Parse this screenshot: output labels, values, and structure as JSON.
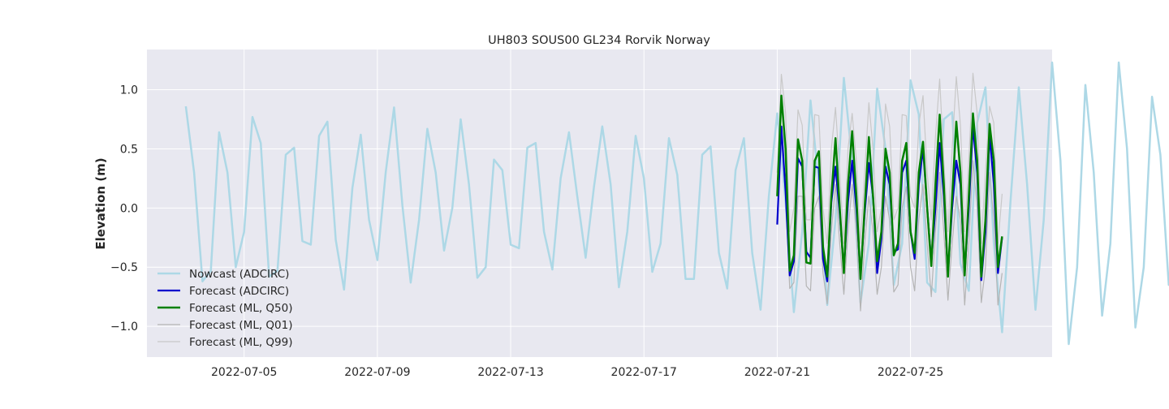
{
  "chart_data": {
    "type": "line",
    "title": "UH803 SOUS00 GL234 Rorvik Norway",
    "xlabel": "",
    "ylabel": "Elevation (m)",
    "x_unit": "date",
    "xlim": [
      "2022-07-02T02:00",
      "2022-07-29T06:00"
    ],
    "ylim": [
      -1.26,
      1.34
    ],
    "x_ticks": [
      "2022-07-05",
      "2022-07-09",
      "2022-07-13",
      "2022-07-17",
      "2022-07-21",
      "2022-07-25"
    ],
    "y_ticks": [
      -1.0,
      -0.5,
      0.0,
      0.5,
      1.0
    ],
    "y_tick_labels": [
      "−1.0",
      "−0.5",
      "0.0",
      "0.5",
      "1.0"
    ],
    "grid": true,
    "background": "#e8e8f0",
    "legend_position": "lower-left",
    "series": [
      {
        "name": "Nowcast (ADCIRC)",
        "color": "#add8e6",
        "x_start": "2022-07-03T06:00",
        "x_step_hours": 6,
        "values": [
          0.86,
          0.3,
          -0.62,
          -0.53,
          0.64,
          0.3,
          -0.5,
          -0.2,
          0.77,
          0.55,
          -0.58,
          -0.53,
          0.45,
          0.51,
          -0.28,
          -0.31,
          0.61,
          0.73,
          -0.27,
          -0.69,
          0.17,
          0.62,
          -0.1,
          -0.44,
          0.3,
          0.85,
          0.02,
          -0.63,
          -0.1,
          0.67,
          0.3,
          -0.36,
          0.0,
          0.75,
          0.2,
          -0.59,
          -0.5,
          0.41,
          0.32,
          -0.31,
          -0.34,
          0.51,
          0.55,
          -0.2,
          -0.52,
          0.25,
          0.64,
          0.1,
          -0.42,
          0.18,
          0.69,
          0.2,
          -0.67,
          -0.2,
          0.61,
          0.25,
          -0.54,
          -0.3,
          0.59,
          0.28,
          -0.6,
          -0.6,
          0.45,
          0.52,
          -0.38,
          -0.68,
          0.32,
          0.59,
          -0.38,
          -0.86,
          0.1,
          0.8,
          0.05,
          -0.88,
          -0.2,
          0.91,
          0.2,
          -0.82,
          -0.1,
          1.1,
          0.4,
          -0.8,
          -0.3,
          1.01,
          0.5,
          -0.65,
          -0.3,
          1.08,
          0.79,
          -0.63,
          -0.71,
          0.75,
          0.81,
          -0.47,
          -0.7,
          0.72,
          1.02,
          -0.3,
          -1.05,
          0.05,
          1.02,
          0.2,
          -0.86,
          -0.1,
          1.23,
          0.4,
          -1.15,
          -0.5,
          1.04,
          0.3,
          -0.91,
          -0.3,
          1.23,
          0.5,
          -1.01,
          -0.5,
          0.94,
          0.45,
          -0.65,
          -0.3,
          1.04,
          0.7,
          -0.72,
          -0.78,
          0.57,
          0.65,
          -0.44,
          -0.56,
          0.62,
          0.83,
          -0.3,
          -0.92,
          0.12,
          0.66,
          -0.2,
          -0.68,
          0.3,
          0.92,
          0.05,
          -0.76,
          -0.3,
          0.64,
          0.2,
          -0.56
        ]
      },
      {
        "name": "Forecast (ADCIRC)",
        "color": "#0000cc",
        "x": [
          21.0,
          21.125,
          21.25,
          21.375,
          21.5,
          21.625,
          21.75,
          21.875,
          22.0,
          22.125,
          22.25,
          22.375,
          22.5,
          22.625,
          22.75,
          22.875,
          23.0,
          23.125,
          23.25,
          23.375,
          23.5,
          23.625,
          23.75,
          23.875,
          24.0,
          24.125,
          24.25,
          24.375,
          24.5,
          24.625,
          24.75,
          24.875,
          25.0,
          25.125,
          25.25,
          25.375,
          25.5,
          25.625,
          25.75,
          25.875,
          26.0,
          26.125,
          26.25,
          26.375,
          26.5,
          26.625,
          26.75,
          26.875,
          27.0,
          27.125,
          27.25,
          27.375,
          27.5,
          27.625,
          27.75
        ],
        "values": [
          -0.14,
          0.69,
          0.14,
          -0.57,
          -0.45,
          0.42,
          0.35,
          -0.37,
          -0.42,
          0.35,
          0.34,
          -0.43,
          -0.62,
          0.05,
          0.35,
          -0.05,
          -0.52,
          0.05,
          0.4,
          0.0,
          -0.57,
          -0.05,
          0.38,
          0.1,
          -0.55,
          -0.26,
          0.35,
          0.2,
          -0.37,
          -0.35,
          0.3,
          0.4,
          -0.2,
          -0.43,
          0.2,
          0.5,
          0.0,
          -0.46,
          0.0,
          0.55,
          0.1,
          -0.55,
          0.0,
          0.4,
          0.2,
          -0.55,
          0.0,
          0.69,
          0.3,
          -0.61,
          -0.2,
          0.62,
          0.2,
          -0.55,
          -0.25
        ]
      },
      {
        "name": "Forecast (ML, Q50)",
        "color": "#008000",
        "x": [
          21.0,
          21.125,
          21.25,
          21.375,
          21.5,
          21.625,
          21.75,
          21.875,
          22.0,
          22.125,
          22.25,
          22.375,
          22.5,
          22.625,
          22.75,
          22.875,
          23.0,
          23.125,
          23.25,
          23.375,
          23.5,
          23.625,
          23.75,
          23.875,
          24.0,
          24.125,
          24.25,
          24.375,
          24.5,
          24.625,
          24.75,
          24.875,
          25.0,
          25.125,
          25.25,
          25.375,
          25.5,
          25.625,
          25.75,
          25.875,
          26.0,
          26.125,
          26.25,
          26.375,
          26.5,
          26.625,
          26.75,
          26.875,
          27.0,
          27.125,
          27.25,
          27.375,
          27.5,
          27.625,
          27.75
        ],
        "values": [
          0.1,
          0.95,
          0.5,
          -0.53,
          -0.4,
          0.58,
          0.4,
          -0.46,
          -0.47,
          0.4,
          0.48,
          -0.33,
          -0.58,
          0.1,
          0.59,
          0.0,
          -0.55,
          0.2,
          0.65,
          0.1,
          -0.6,
          0.0,
          0.6,
          0.1,
          -0.45,
          -0.2,
          0.5,
          0.3,
          -0.4,
          -0.3,
          0.4,
          0.55,
          -0.2,
          -0.38,
          0.3,
          0.56,
          0.0,
          -0.49,
          0.2,
          0.79,
          0.2,
          -0.58,
          0.1,
          0.73,
          0.3,
          -0.57,
          0.1,
          0.8,
          0.4,
          -0.58,
          -0.1,
          0.71,
          0.4,
          -0.5,
          -0.24
        ]
      },
      {
        "name": "Forecast (ML, Q01)",
        "color": "#b4b4b4",
        "x": [
          21.0,
          21.125,
          21.25,
          21.375,
          21.5,
          21.625,
          21.75,
          21.875,
          22.0,
          22.125,
          22.25,
          22.375,
          22.5,
          22.625,
          22.75,
          22.875,
          23.0,
          23.125,
          23.25,
          23.375,
          23.5,
          23.625,
          23.75,
          23.875,
          24.0,
          24.125,
          24.25,
          24.375,
          24.5,
          24.625,
          24.75,
          24.875,
          25.0,
          25.125,
          25.25,
          25.375,
          25.5,
          25.625,
          25.75,
          25.875,
          26.0,
          26.125,
          26.25,
          26.375,
          26.5,
          26.625,
          26.75,
          26.875,
          27.0,
          27.125,
          27.25,
          27.375,
          27.5,
          27.625,
          27.75
        ],
        "values": [
          0.3,
          0.6,
          0.1,
          -0.68,
          -0.63,
          0.1,
          0.1,
          -0.66,
          -0.7,
          0.0,
          0.1,
          -0.55,
          -0.81,
          -0.2,
          0.2,
          -0.3,
          -0.73,
          -0.2,
          0.2,
          -0.2,
          -0.87,
          -0.3,
          0.1,
          -0.2,
          -0.73,
          -0.5,
          0.1,
          -0.1,
          -0.71,
          -0.65,
          0.0,
          0.18,
          -0.5,
          -0.7,
          -0.1,
          0.2,
          -0.3,
          -0.75,
          -0.2,
          0.3,
          -0.2,
          -0.78,
          -0.3,
          0.1,
          -0.1,
          -0.82,
          -0.3,
          0.4,
          0.0,
          -0.8,
          -0.5,
          0.3,
          -0.1,
          -0.82,
          -0.55
        ]
      },
      {
        "name": "Forecast (ML, Q99)",
        "color": "#c8c8c8",
        "x": [
          21.0,
          21.125,
          21.25,
          21.375,
          21.5,
          21.625,
          21.75,
          21.875,
          22.0,
          22.125,
          22.25,
          22.375,
          22.5,
          22.625,
          22.75,
          22.875,
          23.0,
          23.125,
          23.25,
          23.375,
          23.5,
          23.625,
          23.75,
          23.875,
          24.0,
          24.125,
          24.25,
          24.375,
          24.5,
          24.625,
          24.75,
          24.875,
          25.0,
          25.125,
          25.25,
          25.375,
          25.5,
          25.625,
          25.75,
          25.875,
          26.0,
          26.125,
          26.25,
          26.375,
          26.5,
          26.625,
          26.75,
          26.875,
          27.0,
          27.125,
          27.25,
          27.375,
          27.5,
          27.625,
          27.75
        ],
        "values": [
          0.3,
          1.13,
          0.8,
          -0.2,
          0.0,
          0.83,
          0.7,
          -0.1,
          -0.1,
          0.79,
          0.78,
          0.0,
          -0.3,
          0.5,
          0.85,
          0.3,
          -0.3,
          0.5,
          0.8,
          0.4,
          -0.3,
          0.3,
          0.89,
          0.5,
          -0.2,
          0.0,
          0.88,
          0.69,
          -0.1,
          0.0,
          0.79,
          0.78,
          0.1,
          0.0,
          0.7,
          0.95,
          0.3,
          -0.1,
          0.6,
          1.09,
          0.4,
          -0.2,
          0.5,
          1.11,
          0.7,
          -0.2,
          0.4,
          1.14,
          0.8,
          -0.3,
          0.3,
          0.86,
          0.72,
          -0.3,
          0.12
        ]
      }
    ]
  }
}
